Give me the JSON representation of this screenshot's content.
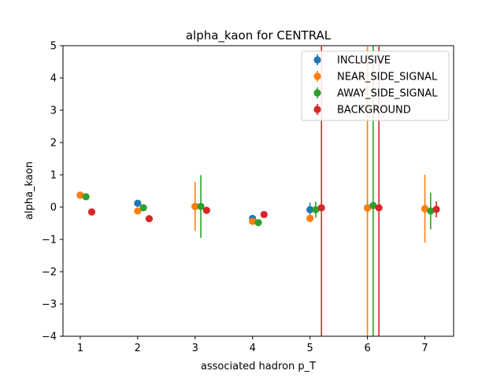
{
  "chart_data": {
    "type": "scatter",
    "title": "alpha_kaon for CENTRAL",
    "xlabel": "associated hadron p_T",
    "ylabel": "alpha_kaon",
    "xlim": [
      0.7,
      7.5
    ],
    "ylim": [
      -4,
      5
    ],
    "x_ticks": [
      1,
      2,
      3,
      4,
      5,
      6,
      7
    ],
    "y_ticks": [
      -4,
      -3,
      -2,
      -1,
      0,
      1,
      2,
      3,
      4,
      5
    ],
    "grid": false,
    "legend_position": "top-right",
    "series": [
      {
        "name": "INCLUSIVE",
        "color": "#1f77b4",
        "x": [
          1,
          2,
          3,
          4,
          5,
          6,
          7
        ],
        "y": [
          0.37,
          0.12,
          0.02,
          -0.35,
          -0.08,
          -0.02,
          -0.05
        ],
        "yerr": [
          0.03,
          0.05,
          0.05,
          0.05,
          0.22,
          0.2,
          0.15
        ]
      },
      {
        "name": "NEAR_SIDE_SIGNAL",
        "color": "#ff7f0e",
        "x": [
          1,
          2,
          3,
          4,
          5,
          6,
          7
        ],
        "y": [
          0.37,
          -0.12,
          0.02,
          -0.44,
          -0.35,
          -0.03,
          -0.05
        ],
        "yerr": [
          0.03,
          0.05,
          0.76,
          0.05,
          0.12,
          5.0,
          1.05
        ]
      },
      {
        "name": "AWAY_SIDE_SIGNAL",
        "color": "#2ca02c",
        "x": [
          1.1,
          2.1,
          3.1,
          4.1,
          5.1,
          6.1,
          7.1
        ],
        "y": [
          0.32,
          -0.02,
          0.02,
          -0.48,
          -0.08,
          0.05,
          -0.12
        ],
        "yerr": [
          0.03,
          0.05,
          0.97,
          0.05,
          0.25,
          5.0,
          0.57
        ]
      },
      {
        "name": "BACKGROUND",
        "color": "#d62728",
        "x": [
          1.2,
          2.2,
          3.2,
          4.2,
          5.2,
          6.2,
          7.2
        ],
        "y": [
          -0.15,
          -0.36,
          -0.1,
          -0.23,
          -0.02,
          -0.02,
          -0.07
        ],
        "yerr": [
          0.03,
          0.05,
          0.05,
          0.05,
          5.0,
          5.0,
          0.25
        ]
      }
    ]
  }
}
